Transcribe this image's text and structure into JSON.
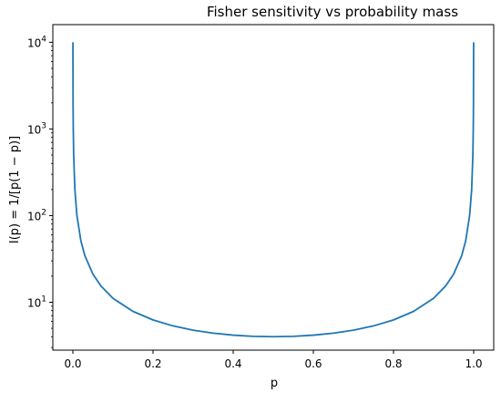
{
  "chart_data": {
    "type": "line",
    "title": "Fisher sensitivity vs probability mass",
    "xlabel": "p",
    "ylabel": "I(p) = 1/[p(1 − p)]",
    "x_scale": "linear",
    "y_scale": "log",
    "xlim": [
      -0.05,
      1.05
    ],
    "ylim": [
      2.8,
      16000
    ],
    "x_ticks": [
      {
        "value": 0.0,
        "label": "0.0"
      },
      {
        "value": 0.2,
        "label": "0.2"
      },
      {
        "value": 0.4,
        "label": "0.4"
      },
      {
        "value": 0.6,
        "label": "0.6"
      },
      {
        "value": 0.8,
        "label": "0.8"
      },
      {
        "value": 1.0,
        "label": "1.0"
      }
    ],
    "y_ticks": [
      {
        "value": 10,
        "label_base": "10",
        "label_exp": "1"
      },
      {
        "value": 100,
        "label_base": "10",
        "label_exp": "2"
      },
      {
        "value": 1000,
        "label_base": "10",
        "label_exp": "3"
      },
      {
        "value": 10000,
        "label_base": "10",
        "label_exp": "4"
      }
    ],
    "grid": false,
    "line_color": "#1f77b4",
    "series": [
      {
        "x": [
          0.0001,
          0.0005,
          0.001,
          0.002,
          0.005,
          0.01,
          0.02,
          0.03,
          0.05,
          0.07,
          0.1,
          0.15,
          0.2,
          0.25,
          0.3,
          0.35,
          0.4,
          0.45,
          0.5,
          0.55,
          0.6,
          0.65,
          0.7,
          0.75,
          0.8,
          0.85,
          0.9,
          0.93,
          0.95,
          0.97,
          0.98,
          0.99,
          0.995,
          0.998,
          0.999,
          0.9995,
          0.9999
        ],
        "y": [
          10001,
          2001,
          1001,
          501,
          201,
          101,
          51,
          34.4,
          21.1,
          15.4,
          11.1,
          7.84,
          6.25,
          5.33,
          4.76,
          4.4,
          4.17,
          4.04,
          4.0,
          4.04,
          4.17,
          4.4,
          4.76,
          5.33,
          6.25,
          7.84,
          11.1,
          15.4,
          21.1,
          34.4,
          51,
          101,
          201,
          501,
          1001,
          2001,
          10001
        ]
      }
    ]
  }
}
